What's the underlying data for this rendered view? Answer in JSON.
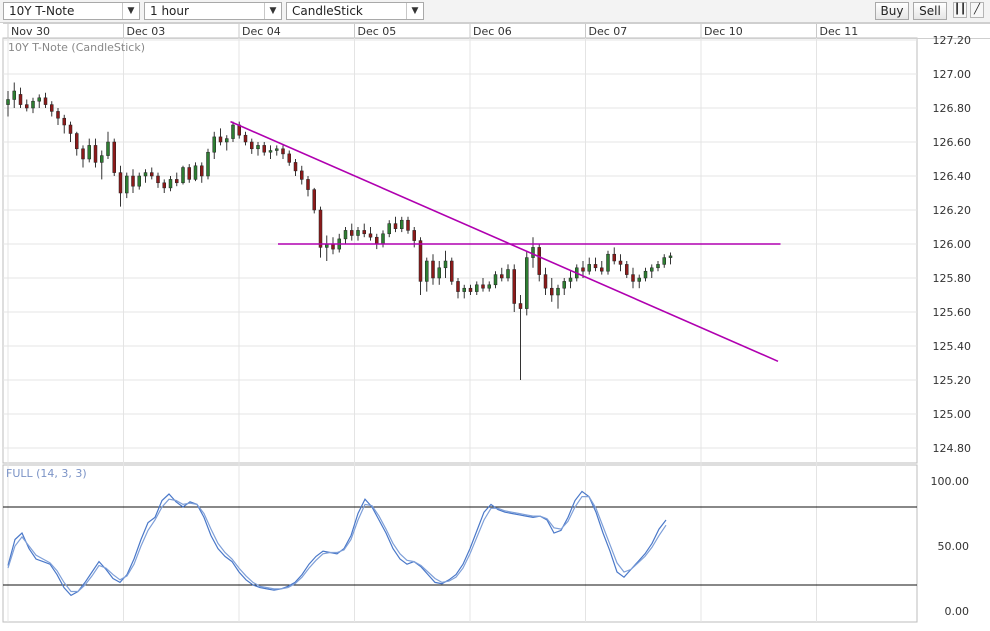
{
  "toolbar": {
    "symbol": "10Y T-Note",
    "interval": "1 hour",
    "chart_style": "CandleStick",
    "buy_label": "Buy",
    "sell_label": "Sell",
    "icons": [
      "candlestick-icon",
      "line-draw-icon"
    ]
  },
  "colors": {
    "up": "#2e7d32",
    "down": "#8b1a1a",
    "trendline": "#b000b0",
    "stoch_k": "#4a78c9",
    "stoch_d": "#7e9fd8",
    "grid": "#e4e4e4"
  },
  "chart_data": [
    {
      "type": "candlestick",
      "title": "10Y T-Note (CandleStick)",
      "date_labels": [
        "Nov 30",
        "Dec 03",
        "Dec 04",
        "Dec 05",
        "Dec 06",
        "Dec 07",
        "Dec 10",
        "Dec 11"
      ],
      "y_ticks": [
        "127.20",
        "127.00",
        "126.80",
        "126.60",
        "126.40",
        "126.20",
        "126.00",
        "125.80",
        "125.60",
        "125.40",
        "125.20",
        "125.00",
        "124.80"
      ],
      "ylim": [
        124.7,
        127.2
      ],
      "grid": true,
      "candles": [
        [
          0,
          126.82,
          126.9,
          126.75,
          126.85
        ],
        [
          0.25,
          126.85,
          126.95,
          126.8,
          126.9
        ],
        [
          0.5,
          126.88,
          126.92,
          126.8,
          126.82
        ],
        [
          0.75,
          126.82,
          126.85,
          126.78,
          126.8
        ],
        [
          1.0,
          126.8,
          126.86,
          126.77,
          126.84
        ],
        [
          1.25,
          126.84,
          126.88,
          126.8,
          126.86
        ],
        [
          1.5,
          126.86,
          126.89,
          126.8,
          126.82
        ],
        [
          1.75,
          126.82,
          126.84,
          126.75,
          126.78
        ],
        [
          2.0,
          126.78,
          126.8,
          126.7,
          126.74
        ],
        [
          2.25,
          126.74,
          126.76,
          126.65,
          126.7
        ],
        [
          2.5,
          126.7,
          126.72,
          126.6,
          126.65
        ],
        [
          2.75,
          126.65,
          126.66,
          126.52,
          126.56
        ],
        [
          3.0,
          126.56,
          126.58,
          126.45,
          126.5
        ],
        [
          3.25,
          126.5,
          126.62,
          126.48,
          126.58
        ],
        [
          3.5,
          126.58,
          126.62,
          126.45,
          126.48
        ],
        [
          3.75,
          126.48,
          126.55,
          126.38,
          126.52
        ],
        [
          4.0,
          126.52,
          126.66,
          126.5,
          126.6
        ],
        [
          4.25,
          126.6,
          126.62,
          126.4,
          126.42
        ],
        [
          4.5,
          126.42,
          126.46,
          126.22,
          126.3
        ],
        [
          4.75,
          126.3,
          126.42,
          126.27,
          126.4
        ],
        [
          5.0,
          126.4,
          126.44,
          126.3,
          126.34
        ],
        [
          5.25,
          126.34,
          126.42,
          126.32,
          126.4
        ],
        [
          5.5,
          126.4,
          126.44,
          126.36,
          126.42
        ],
        [
          5.75,
          126.42,
          126.45,
          126.38,
          126.4
        ],
        [
          6.0,
          126.4,
          126.42,
          126.33,
          126.36
        ],
        [
          6.25,
          126.36,
          126.38,
          126.3,
          126.33
        ],
        [
          6.5,
          126.33,
          126.4,
          126.31,
          126.38
        ],
        [
          6.75,
          126.38,
          126.42,
          126.34,
          126.36
        ],
        [
          7.0,
          126.36,
          126.46,
          126.35,
          126.45
        ],
        [
          7.25,
          126.45,
          126.47,
          126.36,
          126.38
        ],
        [
          7.5,
          126.38,
          126.48,
          126.37,
          126.46
        ],
        [
          7.75,
          126.46,
          126.48,
          126.36,
          126.4
        ],
        [
          8.0,
          126.4,
          126.56,
          126.38,
          126.54
        ],
        [
          8.25,
          126.54,
          126.66,
          126.5,
          126.63
        ],
        [
          8.5,
          126.63,
          126.68,
          126.58,
          126.6
        ],
        [
          8.75,
          126.6,
          126.64,
          126.55,
          126.62
        ],
        [
          9.0,
          126.62,
          126.72,
          126.6,
          126.7
        ],
        [
          9.25,
          126.7,
          126.72,
          126.62,
          126.64
        ],
        [
          9.5,
          126.64,
          126.66,
          126.58,
          126.6
        ],
        [
          9.75,
          126.6,
          126.62,
          126.53,
          126.56
        ],
        [
          10.0,
          126.56,
          126.6,
          126.52,
          126.58
        ],
        [
          10.25,
          126.58,
          126.6,
          126.52,
          126.54
        ],
        [
          10.5,
          126.54,
          126.58,
          126.5,
          126.55
        ],
        [
          10.75,
          126.55,
          126.58,
          126.52,
          126.56
        ],
        [
          11.0,
          126.56,
          126.58,
          126.5,
          126.53
        ],
        [
          11.25,
          126.53,
          126.55,
          126.46,
          126.48
        ],
        [
          11.5,
          126.48,
          126.5,
          126.4,
          126.43
        ],
        [
          11.75,
          126.43,
          126.46,
          126.35,
          126.38
        ],
        [
          12.0,
          126.38,
          126.4,
          126.28,
          126.32
        ],
        [
          12.25,
          126.32,
          126.33,
          126.18,
          126.2
        ],
        [
          12.5,
          126.2,
          126.22,
          125.92,
          125.98
        ],
        [
          12.75,
          125.98,
          126.05,
          125.9,
          126.0
        ],
        [
          13.0,
          126.0,
          126.04,
          125.94,
          125.97
        ],
        [
          13.25,
          125.97,
          126.06,
          125.95,
          126.03
        ],
        [
          13.5,
          126.03,
          126.1,
          126.0,
          126.08
        ],
        [
          13.75,
          126.08,
          126.12,
          126.02,
          126.05
        ],
        [
          14.0,
          126.05,
          126.1,
          126.02,
          126.08
        ],
        [
          14.25,
          126.08,
          126.12,
          126.04,
          126.06
        ],
        [
          14.5,
          126.06,
          126.1,
          126.02,
          126.04
        ],
        [
          14.75,
          126.04,
          126.06,
          125.97,
          126.0
        ],
        [
          15.0,
          126.0,
          126.08,
          125.98,
          126.06
        ],
        [
          15.25,
          126.06,
          126.14,
          126.04,
          126.12
        ],
        [
          15.5,
          126.12,
          126.16,
          126.07,
          126.09
        ],
        [
          15.75,
          126.09,
          126.16,
          126.07,
          126.14
        ],
        [
          16.0,
          126.14,
          126.16,
          126.06,
          126.08
        ],
        [
          16.25,
          126.08,
          126.1,
          125.98,
          126.02
        ],
        [
          16.5,
          126.02,
          126.04,
          125.7,
          125.78
        ],
        [
          16.75,
          125.78,
          125.92,
          125.72,
          125.9
        ],
        [
          17.0,
          125.9,
          125.94,
          125.76,
          125.8
        ],
        [
          17.25,
          125.8,
          125.9,
          125.76,
          125.86
        ],
        [
          17.5,
          125.86,
          125.96,
          125.8,
          125.9
        ],
        [
          17.75,
          125.9,
          125.92,
          125.76,
          125.78
        ],
        [
          18.0,
          125.78,
          125.8,
          125.68,
          125.72
        ],
        [
          18.25,
          125.72,
          125.76,
          125.68,
          125.74
        ],
        [
          18.5,
          125.74,
          125.76,
          125.7,
          125.72
        ],
        [
          18.75,
          125.72,
          125.78,
          125.7,
          125.76
        ],
        [
          19.0,
          125.76,
          125.8,
          125.72,
          125.74
        ],
        [
          19.25,
          125.74,
          125.78,
          125.72,
          125.76
        ],
        [
          19.5,
          125.76,
          125.84,
          125.74,
          125.82
        ],
        [
          19.75,
          125.82,
          125.86,
          125.78,
          125.8
        ],
        [
          20.0,
          125.8,
          125.88,
          125.78,
          125.85
        ],
        [
          20.25,
          125.85,
          125.88,
          125.6,
          125.65
        ],
        [
          20.5,
          125.65,
          125.7,
          125.2,
          125.62
        ],
        [
          20.75,
          125.62,
          125.96,
          125.58,
          125.92
        ],
        [
          21.0,
          125.92,
          126.04,
          125.86,
          125.98
        ],
        [
          21.25,
          125.98,
          126.0,
          125.78,
          125.82
        ],
        [
          21.5,
          125.82,
          125.86,
          125.7,
          125.74
        ],
        [
          21.75,
          125.74,
          125.8,
          125.66,
          125.7
        ],
        [
          22.0,
          125.7,
          125.76,
          125.62,
          125.74
        ],
        [
          22.25,
          125.74,
          125.8,
          125.7,
          125.78
        ],
        [
          22.5,
          125.78,
          125.84,
          125.74,
          125.8
        ],
        [
          22.75,
          125.8,
          125.88,
          125.78,
          125.86
        ],
        [
          23.0,
          125.86,
          125.9,
          125.8,
          125.84
        ],
        [
          23.25,
          125.84,
          125.92,
          125.82,
          125.88
        ],
        [
          23.5,
          125.88,
          125.92,
          125.84,
          125.86
        ],
        [
          23.75,
          125.86,
          125.9,
          125.82,
          125.84
        ],
        [
          24.0,
          125.84,
          125.96,
          125.82,
          125.94
        ],
        [
          24.25,
          125.94,
          125.98,
          125.88,
          125.9
        ],
        [
          24.5,
          125.9,
          125.94,
          125.84,
          125.88
        ],
        [
          24.75,
          125.88,
          125.9,
          125.8,
          125.82
        ],
        [
          25.0,
          125.82,
          125.86,
          125.74,
          125.78
        ],
        [
          25.25,
          125.78,
          125.82,
          125.74,
          125.8
        ],
        [
          25.5,
          125.8,
          125.86,
          125.78,
          125.84
        ],
        [
          25.75,
          125.84,
          125.88,
          125.8,
          125.86
        ],
        [
          26.0,
          125.86,
          125.9,
          125.84,
          125.88
        ],
        [
          26.25,
          125.88,
          125.94,
          125.86,
          125.92
        ],
        [
          26.5,
          125.92,
          125.95,
          125.88,
          125.93
        ]
      ]
    },
    {
      "type": "line",
      "title": "FULL (14, 3, 3)",
      "y_ticks": [
        "100.00",
        "50.00",
        "0.00"
      ],
      "ylim": [
        -5,
        105
      ],
      "levels": [
        80,
        20
      ],
      "series": [
        {
          "values": [
            35,
            55,
            60,
            48,
            40,
            38,
            36,
            28,
            18,
            12,
            15,
            22,
            30,
            38,
            32,
            25,
            22,
            28,
            40,
            55,
            68,
            72,
            85,
            90,
            84,
            80,
            84,
            82,
            72,
            58,
            48,
            42,
            38,
            30,
            24,
            20,
            18,
            17,
            16,
            17,
            19,
            22,
            28,
            36,
            42,
            46,
            45,
            44,
            48,
            58,
            75,
            86,
            80,
            70,
            60,
            48,
            40,
            36,
            38,
            34,
            28,
            22,
            21,
            24,
            28,
            36,
            48,
            62,
            76,
            82,
            78,
            76,
            75,
            74,
            73,
            72,
            73,
            70,
            60,
            62,
            72,
            85,
            92,
            88,
            76,
            60,
            46,
            30,
            26,
            32,
            38,
            44,
            52,
            63,
            70
          ]
        },
        {
          "values": [
            33,
            50,
            57,
            50,
            43,
            40,
            37,
            31,
            22,
            15,
            15,
            20,
            27,
            35,
            33,
            28,
            24,
            27,
            36,
            50,
            62,
            70,
            80,
            86,
            85,
            82,
            83,
            82,
            75,
            63,
            52,
            45,
            40,
            33,
            27,
            22,
            19,
            18,
            17,
            17,
            18,
            21,
            26,
            33,
            39,
            44,
            45,
            45,
            47,
            55,
            70,
            82,
            81,
            73,
            63,
            52,
            44,
            39,
            38,
            35,
            30,
            25,
            22,
            23,
            26,
            33,
            44,
            57,
            70,
            79,
            79,
            77,
            76,
            75,
            74,
            73,
            73,
            71,
            64,
            63,
            69,
            80,
            88,
            88,
            79,
            65,
            51,
            37,
            30,
            32,
            37,
            42,
            49,
            58,
            66
          ]
        }
      ],
      "x_start": 0,
      "x_step": 0.28
    }
  ]
}
